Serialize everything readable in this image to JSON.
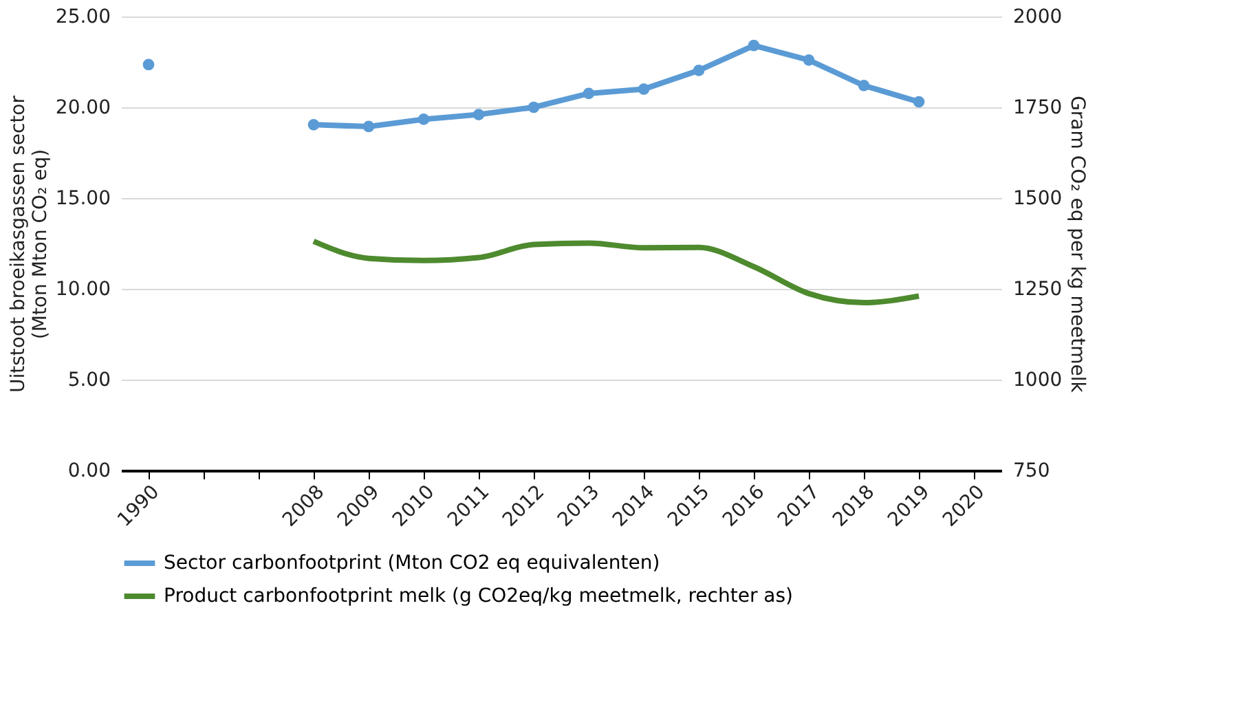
{
  "chart_data": {
    "type": "line",
    "categories": [
      "1990",
      null,
      null,
      "2008",
      "2009",
      "2010",
      "2011",
      "2012",
      "2013",
      "2014",
      "2015",
      "2016",
      "2017",
      "2018",
      "2019",
      "2020"
    ],
    "series": [
      {
        "name": "Sector carbonfootprint (Mton CO2 eq equivalenten)",
        "color": "#5b9bd5",
        "marker": "circle",
        "values": [
          22.35,
          null,
          null,
          19.04,
          18.94,
          19.34,
          19.6,
          20.0,
          20.76,
          21.0,
          22.03,
          23.4,
          22.6,
          21.2,
          20.3,
          null
        ]
      },
      {
        "name": "Product carbonfootprint melk (g CO2eq/kg meetmelk, rechter as)",
        "color": "#4e8a2e",
        "marker": "none",
        "axis": "y2",
        "values": [
          null,
          null,
          null,
          1381,
          1334,
          1328,
          1336,
          1372,
          1376,
          1363,
          1364,
          1311,
          1237,
          1212,
          1230,
          null
        ]
      }
    ],
    "ylabel": "Uitstoot broeikasgassen sector\n(Mton Mton CO₂ eq)",
    "y2label": "Gram CO₂ eq per kg meetmelk",
    "ylim": [
      0,
      25
    ],
    "yticks": [
      {
        "value": 0,
        "label": "0.00"
      },
      {
        "value": 5,
        "label": "5.00"
      },
      {
        "value": 10,
        "label": "10.00"
      },
      {
        "value": 15,
        "label": "15.00"
      },
      {
        "value": 20,
        "label": "20.00"
      },
      {
        "value": 25,
        "label": "25.00"
      }
    ],
    "y2lim": [
      750,
      2000
    ],
    "y2ticks": [
      750,
      1000,
      1250,
      1500,
      1750,
      2000
    ],
    "grid": "y",
    "legend": "bottom",
    "line_style": "solid"
  }
}
